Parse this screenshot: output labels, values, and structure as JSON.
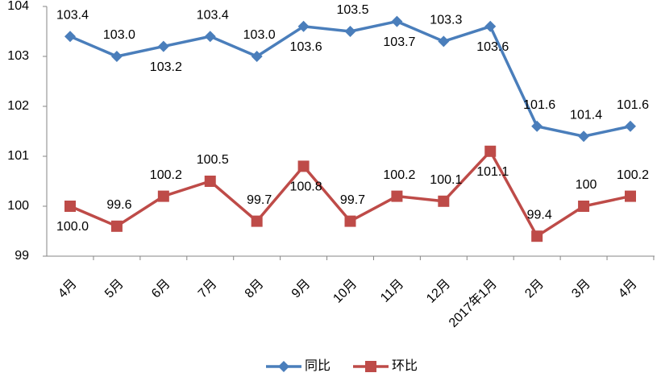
{
  "chart_data": {
    "type": "line",
    "categories": [
      "4月",
      "5月",
      "6月",
      "7月",
      "8月",
      "9月",
      "10月",
      "11月",
      "12月",
      "2017年1月",
      "2月",
      "3月",
      "4月"
    ],
    "series": [
      {
        "name": "同比",
        "color": "#4a7ebb",
        "marker": "diamond",
        "values": [
          103.4,
          103.0,
          103.2,
          103.4,
          103.0,
          103.6,
          103.5,
          103.7,
          103.3,
          103.6,
          101.6,
          101.4,
          101.6
        ],
        "value_labels": [
          "103.4",
          "103.0",
          "103.2",
          "103.4",
          "103.0",
          "103.6",
          "103.5",
          "103.7",
          "103.3",
          "103.6",
          "101.6",
          "101.4",
          "101.6"
        ]
      },
      {
        "name": "环比",
        "color": "#be4b48",
        "marker": "square",
        "values": [
          100.0,
          99.6,
          100.2,
          100.5,
          99.7,
          100.8,
          99.7,
          100.2,
          100.1,
          101.1,
          99.4,
          100,
          100.2
        ],
        "value_labels": [
          "100.0",
          "99.6",
          "100.2",
          "100.5",
          "99.7",
          "100.8",
          "99.7",
          "100.2",
          "100.1",
          "101.1",
          "99.4",
          "100",
          "100.2"
        ]
      }
    ],
    "ylim": [
      99,
      104
    ],
    "yticks": [
      99,
      100,
      101,
      102,
      103,
      104
    ],
    "grid": false,
    "legend": "bottom"
  }
}
